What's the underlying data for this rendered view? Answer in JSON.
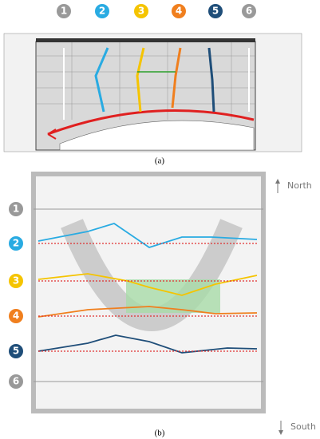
{
  "panel_a": {
    "caption": "(a)",
    "markers": [
      "1",
      "2",
      "3",
      "4",
      "5",
      "6"
    ]
  },
  "panel_b": {
    "caption": "(b)",
    "markers": [
      "1",
      "2",
      "3",
      "4",
      "5",
      "6"
    ],
    "north": "North",
    "south": "South"
  }
}
